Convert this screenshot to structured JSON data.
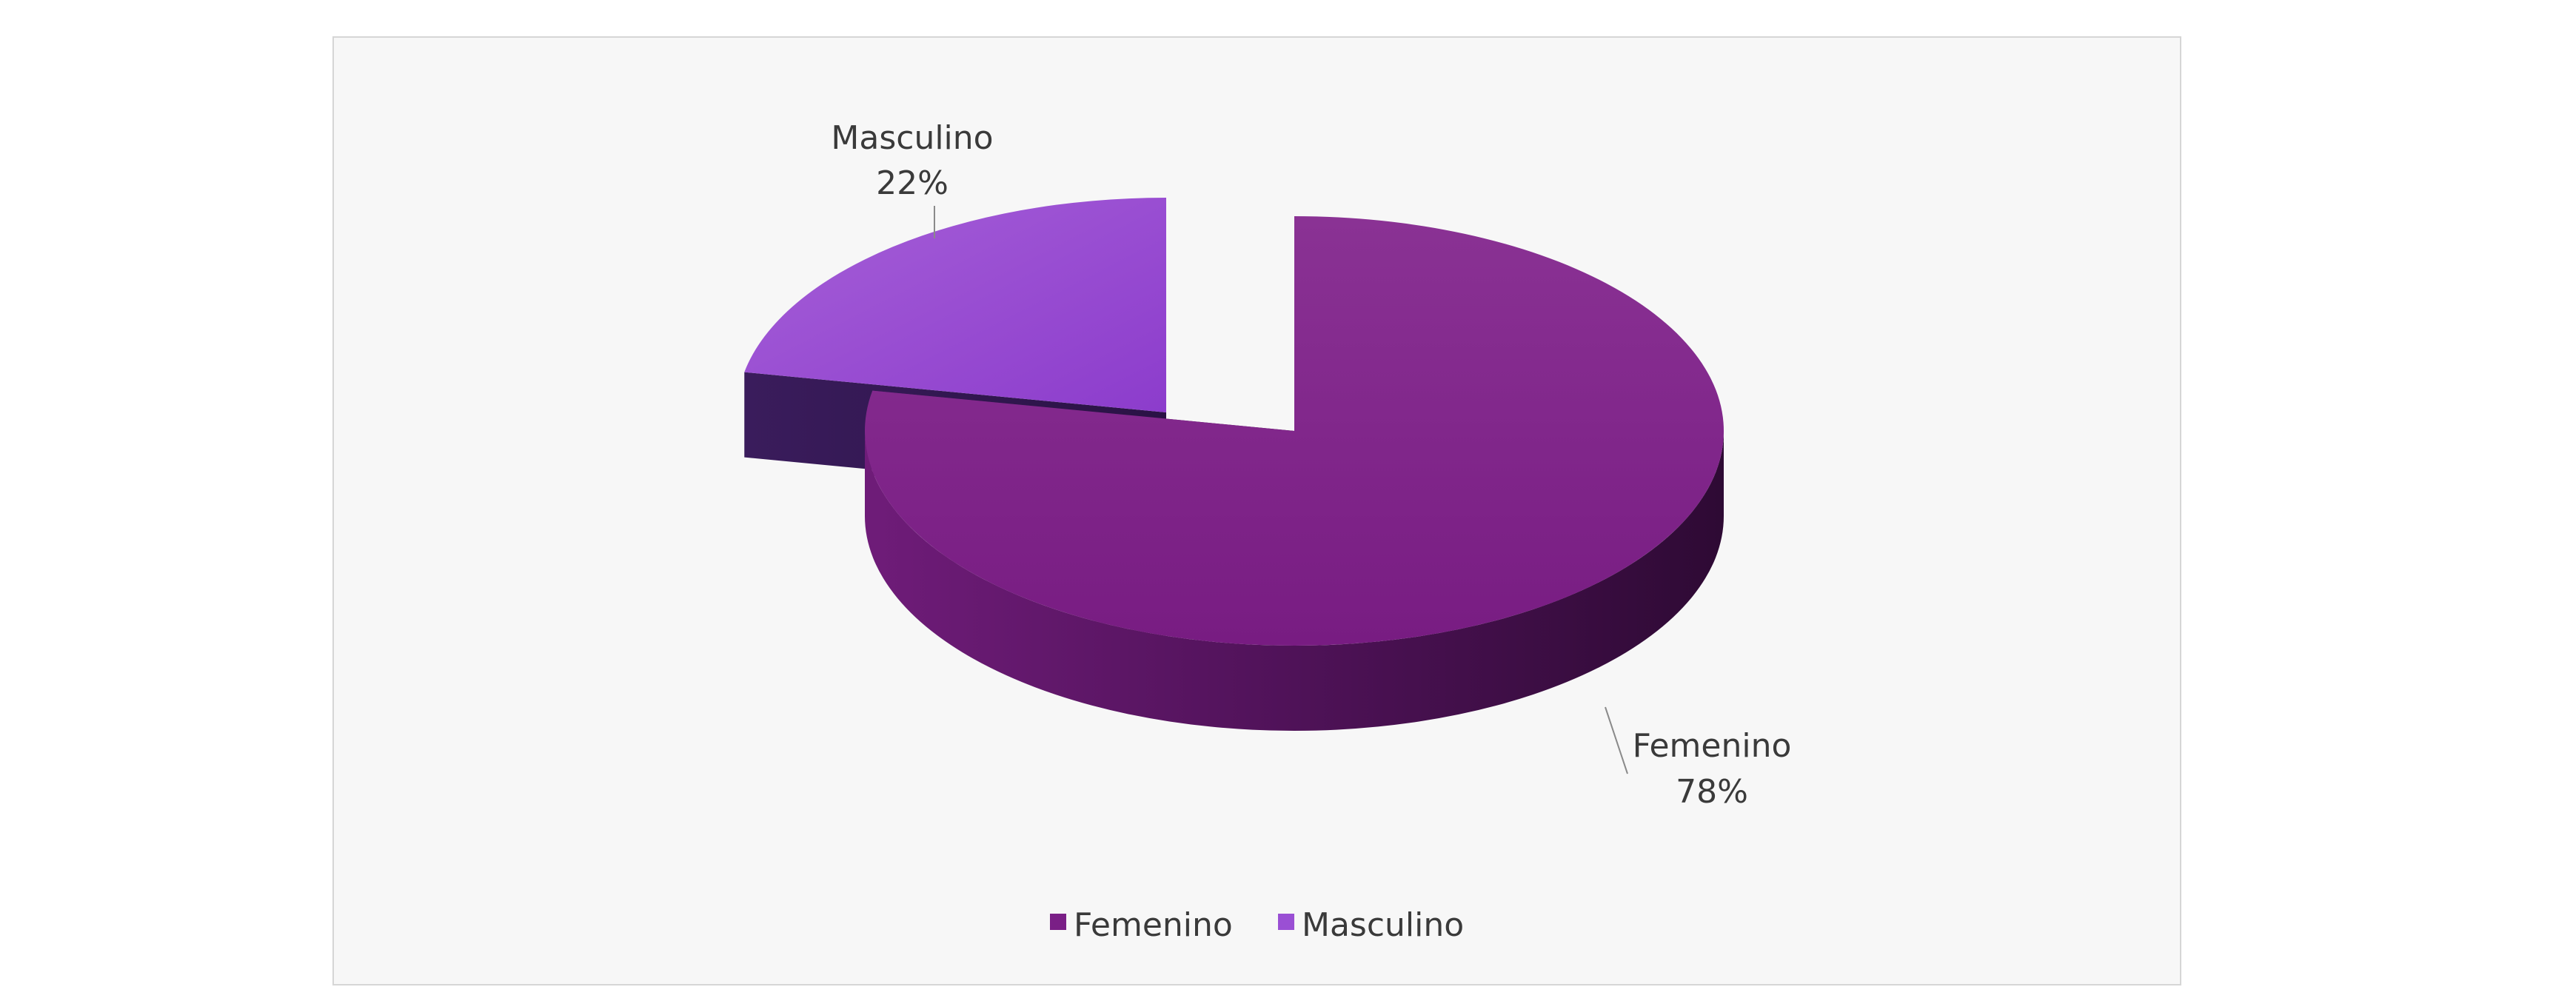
{
  "chart_data": {
    "type": "pie",
    "style": "3d-exploded",
    "categories": [
      "Femenino",
      "Masculino"
    ],
    "values": [
      78,
      22
    ],
    "labels": [
      "78%",
      "22%"
    ],
    "colors": [
      "#7a1f86",
      "#9a4fd4"
    ],
    "legend": {
      "position": "bottom",
      "entries": [
        "Femenino",
        "Masculino"
      ]
    }
  }
}
